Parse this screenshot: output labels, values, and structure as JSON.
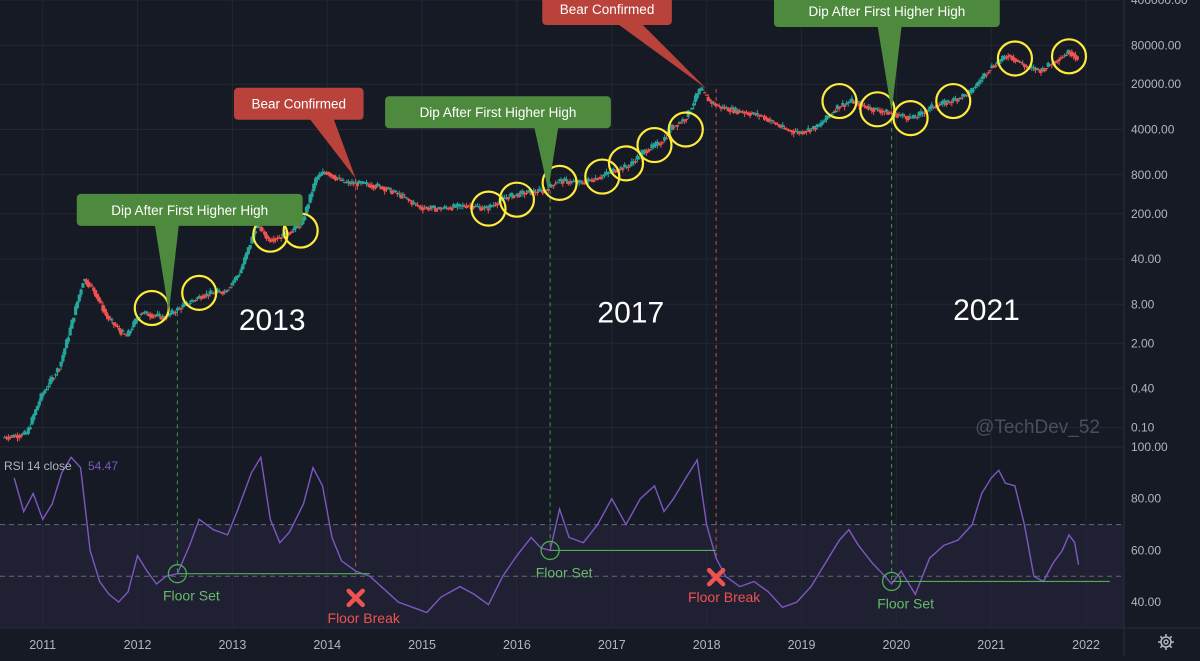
{
  "watermark": "@TechDev_52",
  "theme": {
    "background": "#161a25",
    "grid": "#222733",
    "axis_text": "#b2b5be",
    "candle_up": "#26a69a",
    "candle_down": "#ef5350",
    "rsi_line": "#7e57c2",
    "rsi_band": "#2a2640",
    "highlight_circle": "#ffeb3b",
    "bull_label": "#4e8a3e",
    "bear_label": "#b9433b",
    "floor_line": "#4caf50",
    "break_line": "#ef5350"
  },
  "chart_data": [
    {
      "type": "candlestick",
      "name": "price",
      "scale": "log",
      "ylim": [
        0.05,
        400000
      ],
      "xlim": [
        2010.55,
        2022.4
      ],
      "y_ticks": [
        "400000.00",
        "80000.00",
        "20000.00",
        "4000.00",
        "800.00",
        "200.00",
        "40.00",
        "8.00",
        "2.00",
        "0.40",
        "0.10"
      ],
      "y_tick_values": [
        400000,
        80000,
        20000,
        4000,
        800,
        200,
        40,
        8,
        2,
        0.4,
        0.1
      ],
      "x_ticks": [
        "2011",
        "2012",
        "2013",
        "2014",
        "2015",
        "2016",
        "2017",
        "2018",
        "2019",
        "2020",
        "2021",
        "2022"
      ],
      "x_tick_values": [
        2011,
        2012,
        2013,
        2014,
        2015,
        2016,
        2017,
        2018,
        2019,
        2020,
        2021,
        2022
      ],
      "anchors": [
        [
          2010.6,
          0.07
        ],
        [
          2010.85,
          0.08
        ],
        [
          2011.0,
          0.3
        ],
        [
          2011.2,
          0.9
        ],
        [
          2011.3,
          3.0
        ],
        [
          2011.45,
          20.0
        ],
        [
          2011.55,
          14.0
        ],
        [
          2011.7,
          5.0
        ],
        [
          2011.9,
          2.5
        ],
        [
          2012.05,
          6.0
        ],
        [
          2012.3,
          5.0
        ],
        [
          2012.5,
          7.5
        ],
        [
          2012.7,
          11.0
        ],
        [
          2012.95,
          13.0
        ],
        [
          2013.1,
          25.0
        ],
        [
          2013.28,
          140.0
        ],
        [
          2013.4,
          80.0
        ],
        [
          2013.55,
          90.0
        ],
        [
          2013.75,
          140.0
        ],
        [
          2013.9,
          700.0
        ],
        [
          2014.0,
          900.0
        ],
        [
          2014.2,
          600.0
        ],
        [
          2014.4,
          580.0
        ],
        [
          2014.6,
          520.0
        ],
        [
          2014.8,
          380.0
        ],
        [
          2015.0,
          250.0
        ],
        [
          2015.2,
          240.0
        ],
        [
          2015.5,
          270.0
        ],
        [
          2015.7,
          240.0
        ],
        [
          2015.9,
          360.0
        ],
        [
          2016.1,
          420.0
        ],
        [
          2016.3,
          450.0
        ],
        [
          2016.45,
          650.0
        ],
        [
          2016.7,
          600.0
        ],
        [
          2016.9,
          750.0
        ],
        [
          2017.05,
          950.0
        ],
        [
          2017.2,
          1100.0
        ],
        [
          2017.35,
          1800.0
        ],
        [
          2017.55,
          2600.0
        ],
        [
          2017.65,
          4300.0
        ],
        [
          2017.8,
          6000.0
        ],
        [
          2017.95,
          17000.0
        ],
        [
          2018.05,
          11000.0
        ],
        [
          2018.15,
          9000.0
        ],
        [
          2018.4,
          7500.0
        ],
        [
          2018.6,
          6500.0
        ],
        [
          2018.85,
          4000.0
        ],
        [
          2019.0,
          3600.0
        ],
        [
          2019.2,
          4500.0
        ],
        [
          2019.4,
          9000.0
        ],
        [
          2019.55,
          11000.0
        ],
        [
          2019.75,
          8500.0
        ],
        [
          2019.95,
          7200.0
        ],
        [
          2020.2,
          6000.0
        ],
        [
          2020.4,
          9000.0
        ],
        [
          2020.6,
          11000.0
        ],
        [
          2020.8,
          15000.0
        ],
        [
          2021.0,
          35000.0
        ],
        [
          2021.2,
          57000.0
        ],
        [
          2021.4,
          36000.0
        ],
        [
          2021.55,
          33000.0
        ],
        [
          2021.7,
          47000.0
        ],
        [
          2021.85,
          64000.0
        ],
        [
          2021.92,
          52000.0
        ]
      ]
    },
    {
      "type": "line",
      "name": "RSI 14 close",
      "series_name": "RSI",
      "params": "14 close",
      "last_value": "54.47",
      "ylim": [
        30,
        100
      ],
      "y_ticks": [
        "100.00",
        "80.00",
        "60.00",
        "40.00"
      ],
      "y_tick_values": [
        100,
        80,
        60,
        40
      ],
      "band": [
        30,
        70
      ],
      "midline": 50,
      "points": [
        [
          2010.7,
          88
        ],
        [
          2010.8,
          75
        ],
        [
          2010.9,
          82
        ],
        [
          2011.0,
          72
        ],
        [
          2011.1,
          78
        ],
        [
          2011.2,
          90
        ],
        [
          2011.3,
          96
        ],
        [
          2011.4,
          92
        ],
        [
          2011.5,
          60
        ],
        [
          2011.6,
          48
        ],
        [
          2011.7,
          43
        ],
        [
          2011.8,
          40
        ],
        [
          2011.9,
          44
        ],
        [
          2012.0,
          58
        ],
        [
          2012.1,
          52
        ],
        [
          2012.2,
          47
        ],
        [
          2012.3,
          50
        ],
        [
          2012.42,
          51
        ],
        [
          2012.55,
          62
        ],
        [
          2012.65,
          72
        ],
        [
          2012.8,
          68
        ],
        [
          2012.95,
          66
        ],
        [
          2013.05,
          75
        ],
        [
          2013.2,
          90
        ],
        [
          2013.3,
          96
        ],
        [
          2013.4,
          72
        ],
        [
          2013.5,
          63
        ],
        [
          2013.6,
          67
        ],
        [
          2013.75,
          78
        ],
        [
          2013.85,
          92
        ],
        [
          2013.95,
          85
        ],
        [
          2014.05,
          65
        ],
        [
          2014.15,
          56
        ],
        [
          2014.3,
          52
        ],
        [
          2014.45,
          50
        ],
        [
          2014.6,
          45
        ],
        [
          2014.75,
          40
        ],
        [
          2014.9,
          38
        ],
        [
          2015.05,
          36
        ],
        [
          2015.2,
          42
        ],
        [
          2015.4,
          46
        ],
        [
          2015.55,
          43
        ],
        [
          2015.7,
          39
        ],
        [
          2015.85,
          50
        ],
        [
          2016.0,
          58
        ],
        [
          2016.15,
          65
        ],
        [
          2016.25,
          61
        ],
        [
          2016.35,
          60
        ],
        [
          2016.45,
          76
        ],
        [
          2016.55,
          65
        ],
        [
          2016.7,
          63
        ],
        [
          2016.85,
          70
        ],
        [
          2017.0,
          80
        ],
        [
          2017.15,
          70
        ],
        [
          2017.3,
          80
        ],
        [
          2017.45,
          85
        ],
        [
          2017.55,
          75
        ],
        [
          2017.65,
          80
        ],
        [
          2017.78,
          88
        ],
        [
          2017.9,
          95
        ],
        [
          2018.0,
          70
        ],
        [
          2018.1,
          57
        ],
        [
          2018.2,
          50
        ],
        [
          2018.35,
          46
        ],
        [
          2018.5,
          48
        ],
        [
          2018.65,
          44
        ],
        [
          2018.8,
          38
        ],
        [
          2018.95,
          40
        ],
        [
          2019.1,
          46
        ],
        [
          2019.25,
          55
        ],
        [
          2019.4,
          64
        ],
        [
          2019.5,
          68
        ],
        [
          2019.6,
          62
        ],
        [
          2019.75,
          55
        ],
        [
          2019.88,
          50
        ],
        [
          2019.95,
          47
        ],
        [
          2020.05,
          52
        ],
        [
          2020.2,
          43
        ],
        [
          2020.35,
          57
        ],
        [
          2020.5,
          62
        ],
        [
          2020.65,
          64
        ],
        [
          2020.8,
          70
        ],
        [
          2020.9,
          82
        ],
        [
          2021.0,
          88
        ],
        [
          2021.08,
          91
        ],
        [
          2021.15,
          86
        ],
        [
          2021.25,
          85
        ],
        [
          2021.35,
          70
        ],
        [
          2021.45,
          50
        ],
        [
          2021.55,
          48
        ],
        [
          2021.65,
          55
        ],
        [
          2021.75,
          60
        ],
        [
          2021.82,
          66
        ],
        [
          2021.88,
          63
        ],
        [
          2021.92,
          54.47
        ]
      ]
    }
  ],
  "annotations": {
    "callouts": [
      {
        "text": "Dip After First Higher High",
        "kind": "bull",
        "x": 2012.55,
        "y": 230,
        "tip_x": 2012.33,
        "tip_y": 6.0
      },
      {
        "text": "Bear Confirmed",
        "kind": "bear",
        "x": 2013.7,
        "y": 10000,
        "tip_x": 2014.3,
        "tip_y": 700
      },
      {
        "text": "Dip After First Higher High",
        "kind": "bull",
        "x": 2015.8,
        "y": 7400,
        "tip_x": 2016.33,
        "tip_y": 460
      },
      {
        "text": "Bear Confirmed",
        "kind": "bear",
        "x": 2016.95,
        "y": 290000,
        "tip_x": 2018.0,
        "tip_y": 17000
      },
      {
        "text": "Dip After First Higher High",
        "kind": "bull",
        "x": 2019.9,
        "y": 270000,
        "tip_x": 2019.95,
        "tip_y": 7500
      }
    ],
    "year_labels": [
      {
        "text": "2013",
        "x": 2013.42,
        "y": 3.2
      },
      {
        "text": "2017",
        "x": 2017.2,
        "y": 4.2
      },
      {
        "text": "2021",
        "x": 2020.95,
        "y": 4.6
      }
    ],
    "circles": [
      [
        2012.15,
        7.0
      ],
      [
        2012.65,
        12.0
      ],
      [
        2013.4,
        95
      ],
      [
        2013.72,
        110
      ],
      [
        2015.7,
        240
      ],
      [
        2016.0,
        330
      ],
      [
        2016.45,
        600
      ],
      [
        2016.9,
        750
      ],
      [
        2017.15,
        1200
      ],
      [
        2017.45,
        2300
      ],
      [
        2017.78,
        4000
      ],
      [
        2019.4,
        11000
      ],
      [
        2019.8,
        8200
      ],
      [
        2020.15,
        6000
      ],
      [
        2020.6,
        11000
      ],
      [
        2021.25,
        50000
      ],
      [
        2021.82,
        54000
      ]
    ],
    "floor_sets": [
      {
        "label": "Floor Set",
        "x": 2012.42,
        "y": 51,
        "line_to": 2014.45
      },
      {
        "label": "Floor Set",
        "x": 2016.35,
        "y": 60,
        "line_to": 2018.1
      },
      {
        "label": "Floor Set",
        "x": 2019.95,
        "y": 48,
        "line_to": 2022.25
      }
    ],
    "floor_breaks": [
      {
        "label": "Floor Break",
        "x": 2014.3,
        "y": 49
      },
      {
        "label": "Floor Break",
        "x": 2018.1,
        "y": 57
      }
    ],
    "vlines": [
      {
        "x": 2012.42,
        "kind": "bull",
        "from_price": 6.0,
        "to_rsi": 51
      },
      {
        "x": 2014.3,
        "kind": "bear",
        "from_price": 700,
        "to_rsi": 49
      },
      {
        "x": 2016.35,
        "kind": "bull",
        "from_price": 460,
        "to_rsi": 60
      },
      {
        "x": 2018.1,
        "kind": "bear",
        "from_price": 17000,
        "to_rsi": 57
      },
      {
        "x": 2019.95,
        "kind": "bull",
        "from_price": 7500,
        "to_rsi": 48
      }
    ]
  }
}
